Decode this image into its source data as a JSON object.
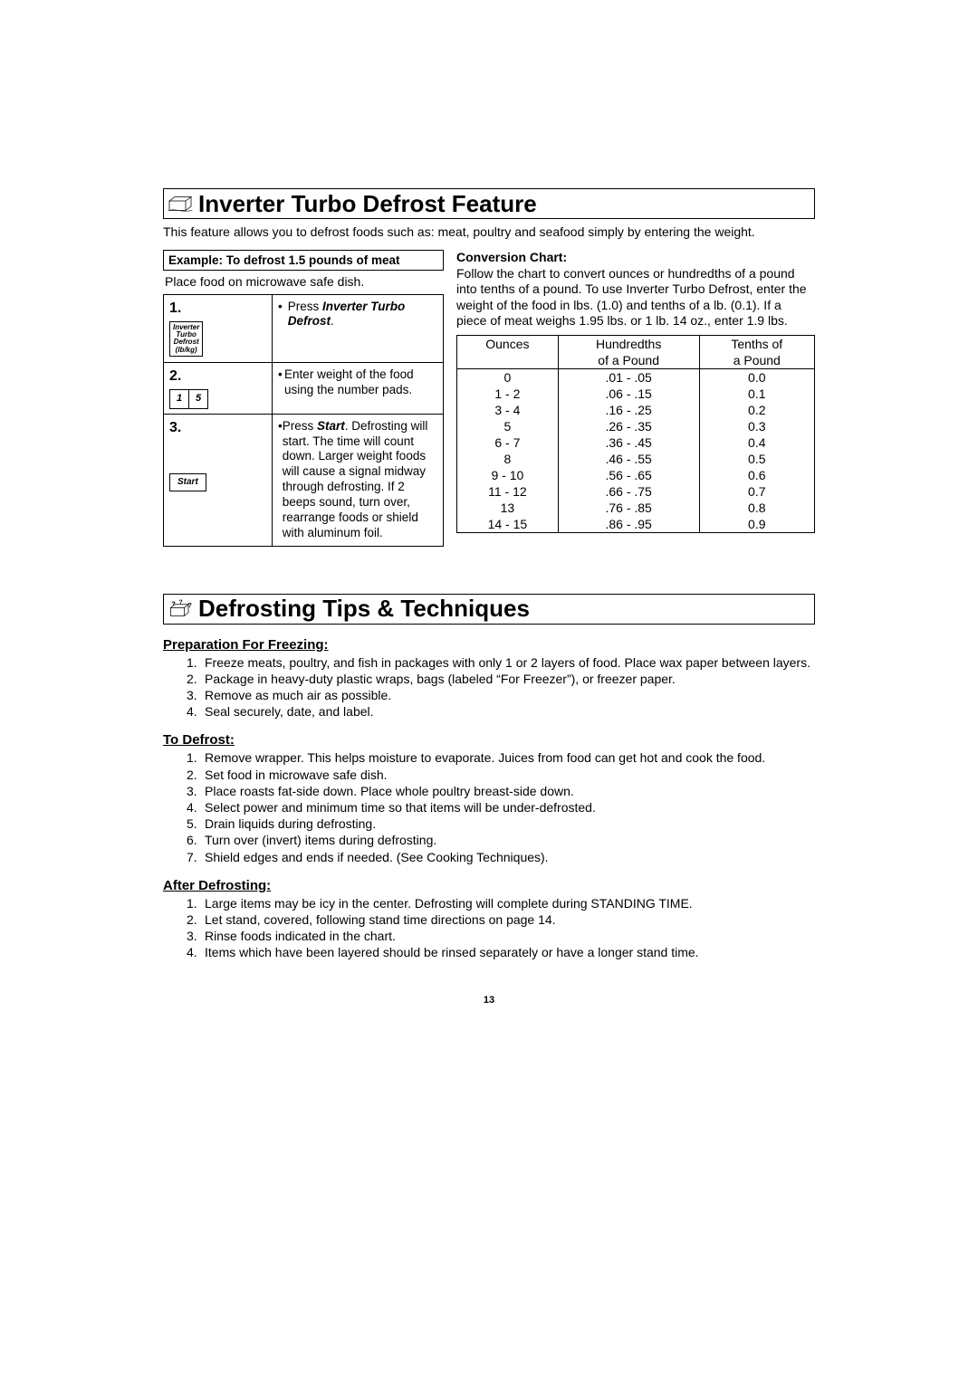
{
  "section1": {
    "title": "Inverter Turbo Defrost Feature",
    "intro": "This feature allows you to defrost foods such as: meat, poultry and seafood simply by entering the weight.",
    "example_header": "Example: To defrost 1.5 pounds of meat",
    "place_line": "Place food on microwave safe dish.",
    "steps": [
      {
        "num": "1.",
        "btn_lines": [
          "Inverter",
          "Turbo",
          "Defrost",
          "(lb/kg)"
        ],
        "action_pre": "Press ",
        "action_bold": "Inverter Turbo Defrost",
        "action_post": "."
      },
      {
        "num": "2.",
        "keys": [
          "1",
          "5"
        ],
        "action": "Enter weight of the food using the number pads."
      },
      {
        "num": "3.",
        "start_label": "Start",
        "action_pre": "Press ",
        "action_bold": "Start",
        "action_post": ".",
        "action_rest": "Defrosting will start. The time will count down. Larger weight foods will cause a signal midway through defrosting. If 2 beeps sound, turn over, rearrange foods or shield with aluminum foil."
      }
    ],
    "conv_header": "Conversion Chart:",
    "conv_text": "Follow the chart to convert ounces or hundredths of a pound into tenths of a pound. To use Inverter Turbo Defrost, enter the weight of the food in lbs. (1.0) and tenths of a lb. (0.1). If a piece of meat weighs 1.95 lbs. or 1 lb. 14 oz., enter 1.9 lbs.",
    "conv_columns": [
      [
        "Ounces",
        ""
      ],
      [
        "Hundredths",
        "of a Pound"
      ],
      [
        "Tenths of",
        "a Pound"
      ]
    ],
    "conv_rows": [
      [
        "0",
        ".01 - .05",
        "0.0"
      ],
      [
        "1 - 2",
        ".06 - .15",
        "0.1"
      ],
      [
        "3 - 4",
        ".16 - .25",
        "0.2"
      ],
      [
        "5",
        ".26 - .35",
        "0.3"
      ],
      [
        "6 - 7",
        ".36 - .45",
        "0.4"
      ],
      [
        "8",
        ".46 - .55",
        "0.5"
      ],
      [
        "9 - 10",
        ".56 - .65",
        "0.6"
      ],
      [
        "11 - 12",
        ".66 - .75",
        "0.7"
      ],
      [
        "13",
        ".76 - .85",
        "0.8"
      ],
      [
        "14 - 15",
        ".86 - .95",
        "0.9"
      ]
    ]
  },
  "section2": {
    "title": "Defrosting Tips & Techniques",
    "groups": [
      {
        "header": "Preparation For Freezing:",
        "items": [
          "Freeze meats, poultry, and fish in packages with only 1 or 2 layers of food. Place wax paper between layers.",
          "Package in heavy-duty plastic wraps, bags (labeled “For Freezer”), or freezer paper.",
          "Remove as much air as possible.",
          "Seal securely, date, and label."
        ]
      },
      {
        "header": "To Defrost:",
        "items": [
          "Remove wrapper. This helps moisture to evaporate. Juices from food can get hot and cook the food.",
          "Set food in microwave safe dish.",
          "Place roasts fat-side down. Place whole poultry breast-side down.",
          "Select power and minimum time so that items will be under-defrosted.",
          "Drain liquids during defrosting.",
          "Turn over (invert) items during defrosting.",
          "Shield edges and ends if needed. (See Cooking Techniques)."
        ]
      },
      {
        "header": "After Defrosting:",
        "items": [
          "Large items may be icy in the center. Defrosting will complete during STANDING TIME.",
          "Let stand, covered, following stand time directions on page 14.",
          "Rinse foods indicated in the chart.",
          "Items which have been layered should be rinsed separately or have a longer stand time."
        ]
      }
    ]
  },
  "page_number": "13"
}
